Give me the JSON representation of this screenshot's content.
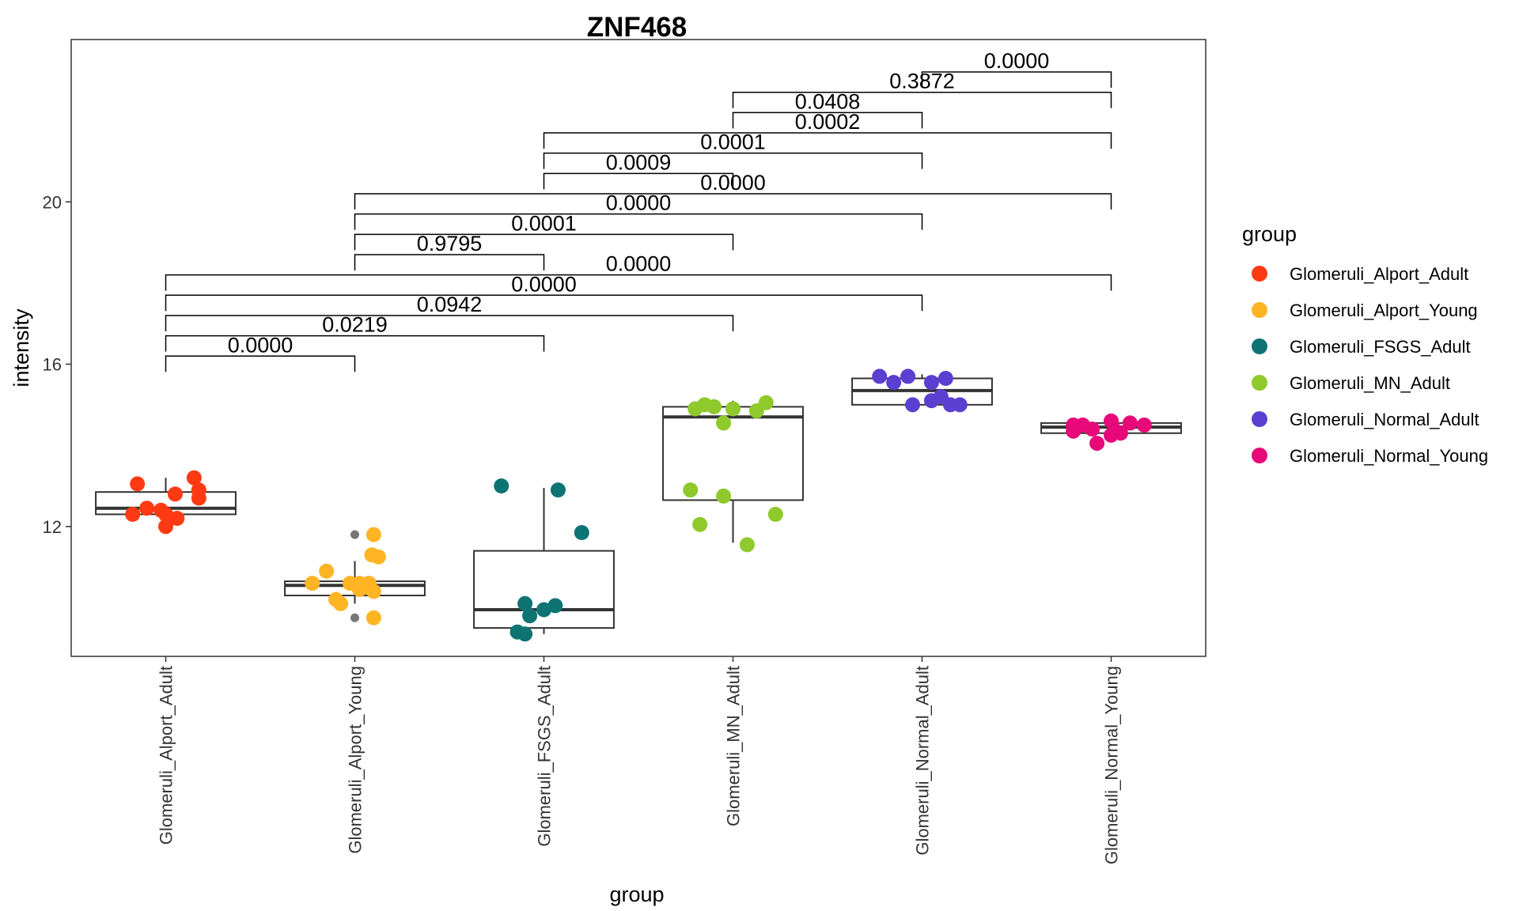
{
  "chart_data": {
    "type": "box",
    "title": "ZNF468",
    "xlabel": "group",
    "ylabel": "intensity",
    "ylim": [
      8.8,
      24.0
    ],
    "yticks": [
      12,
      16,
      20
    ],
    "grid": false,
    "legend_position": "right",
    "legend_title": "group",
    "categories": [
      "Glomeruli_Alport_Adult",
      "Glomeruli_Alport_Young",
      "Glomeruli_FSGS_Adult",
      "Glomeruli_MN_Adult",
      "Glomeruli_Normal_Adult",
      "Glomeruli_Normal_Young"
    ],
    "colors": [
      "#ff3a12",
      "#ffb423",
      "#0d7373",
      "#8fc92b",
      "#5a3fd0",
      "#e8087a"
    ],
    "boxes": [
      {
        "q1": 12.3,
        "median": 12.45,
        "q3": 12.85,
        "whisker_low": 12.3,
        "whisker_high": 13.2,
        "outliers": []
      },
      {
        "q1": 10.3,
        "median": 10.55,
        "q3": 10.65,
        "whisker_low": 10.1,
        "whisker_high": 11.15,
        "outliers": [
          11.8,
          9.75
        ]
      },
      {
        "q1": 9.5,
        "median": 9.95,
        "q3": 11.4,
        "whisker_low": 9.35,
        "whisker_high": 12.95,
        "outliers": []
      },
      {
        "q1": 12.65,
        "median": 14.7,
        "q3": 14.95,
        "whisker_low": 11.6,
        "whisker_high": 15.1,
        "outliers": []
      },
      {
        "q1": 15.0,
        "median": 15.35,
        "q3": 15.65,
        "whisker_low": 15.0,
        "whisker_high": 15.75,
        "outliers": []
      },
      {
        "q1": 14.3,
        "median": 14.45,
        "q3": 14.55,
        "whisker_low": 14.1,
        "whisker_high": 14.65,
        "outliers": []
      }
    ],
    "points": [
      [
        [
          -0.3,
          13.05
        ],
        [
          0.1,
          12.8
        ],
        [
          0.3,
          13.2
        ],
        [
          0.35,
          12.9
        ],
        [
          0.35,
          12.7
        ],
        [
          -0.2,
          12.45
        ],
        [
          -0.05,
          12.4
        ],
        [
          0.0,
          12.3
        ],
        [
          0.12,
          12.2
        ],
        [
          -0.35,
          12.3
        ],
        [
          0.0,
          12.0
        ]
      ],
      [
        [
          0.2,
          11.8
        ],
        [
          0.25,
          11.25
        ],
        [
          0.18,
          11.3
        ],
        [
          -0.3,
          10.9
        ],
        [
          -0.45,
          10.6
        ],
        [
          -0.05,
          10.6
        ],
        [
          0.05,
          10.6
        ],
        [
          0.15,
          10.6
        ],
        [
          0.1,
          10.5
        ],
        [
          -0.2,
          10.2
        ],
        [
          -0.15,
          10.1
        ],
        [
          0.05,
          10.45
        ],
        [
          0.2,
          10.4
        ],
        [
          0.2,
          9.75
        ]
      ],
      [
        [
          -0.45,
          13.0
        ],
        [
          0.15,
          12.9
        ],
        [
          0.4,
          11.85
        ],
        [
          -0.2,
          10.1
        ],
        [
          0.0,
          9.95
        ],
        [
          0.12,
          10.05
        ],
        [
          -0.15,
          9.8
        ],
        [
          -0.28,
          9.4
        ],
        [
          -0.2,
          9.35
        ]
      ],
      [
        [
          -0.4,
          14.9
        ],
        [
          -0.3,
          15.0
        ],
        [
          -0.2,
          14.95
        ],
        [
          0.0,
          14.9
        ],
        [
          0.25,
          14.85
        ],
        [
          0.35,
          15.05
        ],
        [
          -0.1,
          14.55
        ],
        [
          -0.45,
          12.9
        ],
        [
          -0.1,
          12.75
        ],
        [
          -0.35,
          12.05
        ],
        [
          0.45,
          12.3
        ],
        [
          0.15,
          11.55
        ]
      ],
      [
        [
          -0.45,
          15.7
        ],
        [
          -0.3,
          15.55
        ],
        [
          -0.15,
          15.7
        ],
        [
          0.1,
          15.55
        ],
        [
          0.25,
          15.65
        ],
        [
          0.2,
          15.2
        ],
        [
          0.3,
          15.0
        ],
        [
          0.4,
          15.0
        ],
        [
          -0.1,
          15.0
        ],
        [
          0.1,
          15.1
        ]
      ],
      [
        [
          -0.4,
          14.5
        ],
        [
          -0.3,
          14.5
        ],
        [
          -0.4,
          14.35
        ],
        [
          -0.2,
          14.4
        ],
        [
          0.0,
          14.6
        ],
        [
          0.05,
          14.35
        ],
        [
          0.0,
          14.25
        ],
        [
          0.1,
          14.3
        ],
        [
          0.2,
          14.55
        ],
        [
          0.35,
          14.5
        ],
        [
          -0.15,
          14.05
        ]
      ]
    ],
    "comparisons": [
      {
        "from": 0,
        "to": 1,
        "p": "0.0000",
        "y": 16.2
      },
      {
        "from": 0,
        "to": 2,
        "p": "0.0219",
        "y": 16.7
      },
      {
        "from": 0,
        "to": 3,
        "p": "0.0942",
        "y": 17.2
      },
      {
        "from": 0,
        "to": 4,
        "p": "0.0000",
        "y": 17.7
      },
      {
        "from": 0,
        "to": 5,
        "p": "0.0000",
        "y": 18.2
      },
      {
        "from": 1,
        "to": 2,
        "p": "0.9795",
        "y": 18.7
      },
      {
        "from": 1,
        "to": 3,
        "p": "0.0001",
        "y": 19.2
      },
      {
        "from": 1,
        "to": 4,
        "p": "0.0000",
        "y": 19.7
      },
      {
        "from": 1,
        "to": 5,
        "p": "0.0000",
        "y": 20.2
      },
      {
        "from": 2,
        "to": 3,
        "p": "0.0009",
        "y": 20.7
      },
      {
        "from": 2,
        "to": 4,
        "p": "0.0001",
        "y": 21.2
      },
      {
        "from": 2,
        "to": 5,
        "p": "0.0002",
        "y": 21.7
      },
      {
        "from": 3,
        "to": 4,
        "p": "0.0408",
        "y": 22.2
      },
      {
        "from": 3,
        "to": 5,
        "p": "0.3872",
        "y": 22.7
      },
      {
        "from": 4,
        "to": 5,
        "p": "0.0000",
        "y": 23.2
      }
    ]
  }
}
